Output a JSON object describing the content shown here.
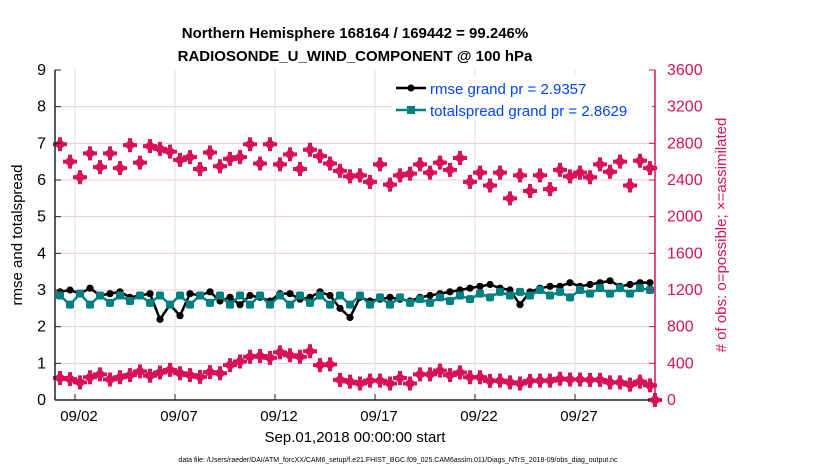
{
  "chart_data": {
    "type": "line",
    "title": [
      "Northern Hemisphere 168164 / 169442 = 99.246%",
      "RADIOSONDE_U_WIND_COMPONENT @ 100 hPa"
    ],
    "xlabel": "Sep.01,2018 00:00:00 start",
    "ylabel": "rmse and totalspread",
    "y2label": "# of obs: o=possible; ×=assimilated",
    "footnote": "data file: /Users/raeder/DAI/ATM_forcXX/CAM6_setup/f.e21.FHIST_BGC.f09_025.CAM6assim.011/Diags_NTrS_2018-09/obs_diag_output.nc",
    "xlim_days": [
      0,
      30
    ],
    "xticks": [
      {
        "day": 1,
        "label": "09/02"
      },
      {
        "day": 6,
        "label": "09/07"
      },
      {
        "day": 11,
        "label": "09/12"
      },
      {
        "day": 16,
        "label": "09/17"
      },
      {
        "day": 21,
        "label": "09/22"
      },
      {
        "day": 26,
        "label": "09/27"
      }
    ],
    "ylim": [
      0,
      9
    ],
    "yticks": [
      0,
      1,
      2,
      3,
      4,
      5,
      6,
      7,
      8,
      9
    ],
    "y2lim": [
      0,
      3600
    ],
    "y2ticks": [
      0,
      400,
      800,
      1200,
      1600,
      2000,
      2400,
      2800,
      3200,
      3600
    ],
    "grid": true,
    "legend_placement": "top-right",
    "colors": {
      "rmse": "#000000",
      "totalspread": "#008080",
      "obs": "#d81159",
      "legend_text": "#0044ff",
      "axis2": "#d81159"
    },
    "x_days_start": 0.25,
    "x_days_step": 0.5,
    "series": [
      {
        "name": "rmse grand pr = 2.9357",
        "axis": "left",
        "values": [
          2.95,
          3.0,
          2.9,
          3.05,
          2.85,
          2.9,
          2.95,
          2.8,
          2.85,
          2.9,
          2.2,
          2.6,
          2.3,
          2.9,
          2.85,
          2.95,
          2.7,
          2.8,
          2.6,
          2.85,
          2.8,
          2.7,
          2.9,
          2.9,
          2.75,
          2.8,
          2.95,
          2.85,
          2.5,
          2.25,
          2.8,
          2.7,
          2.75,
          2.8,
          2.75,
          2.7,
          2.8,
          2.85,
          2.9,
          2.95,
          3.0,
          3.05,
          3.1,
          3.15,
          3.05,
          3.0,
          2.6,
          2.95,
          3.05,
          3.1,
          3.1,
          3.2,
          3.1,
          3.15,
          3.2,
          3.25,
          3.1,
          3.15,
          3.2,
          3.2
        ]
      },
      {
        "name": "totalspread grand pr = 2.8629",
        "axis": "left",
        "values": [
          2.85,
          2.6,
          2.9,
          2.6,
          2.85,
          2.65,
          2.85,
          2.7,
          2.85,
          2.65,
          2.85,
          2.6,
          2.85,
          2.6,
          2.85,
          2.65,
          2.85,
          2.6,
          2.85,
          2.6,
          2.85,
          2.6,
          2.85,
          2.6,
          2.85,
          2.65,
          2.85,
          2.6,
          2.85,
          2.6,
          2.85,
          2.6,
          2.8,
          2.6,
          2.8,
          2.65,
          2.75,
          2.65,
          2.8,
          2.7,
          2.85,
          2.75,
          2.9,
          2.8,
          2.95,
          2.85,
          2.95,
          2.85,
          3.0,
          2.85,
          2.95,
          2.8,
          3.0,
          2.9,
          3.05,
          2.9,
          3.05,
          2.9,
          3.05,
          3.0
        ]
      },
      {
        "name": "possible",
        "axis": "right",
        "values": [
          2790,
          2600,
          2430,
          2690,
          2540,
          2690,
          2530,
          2780,
          2590,
          2770,
          2740,
          2710,
          2620,
          2650,
          2520,
          2700,
          2550,
          2630,
          2650,
          2790,
          2580,
          2790,
          2570,
          2680,
          2520,
          2730,
          2660,
          2580,
          2500,
          2440,
          2450,
          2380,
          2570,
          2350,
          2450,
          2470,
          2570,
          2480,
          2590,
          2510,
          2640,
          2380,
          2480,
          2340,
          2480,
          2200,
          2450,
          2280,
          2450,
          2300,
          2510,
          2440,
          2480,
          2430,
          2570,
          2490,
          2600,
          2340,
          2610,
          2530
        ]
      },
      {
        "name": "assimilated",
        "axis": "right",
        "values": [
          240,
          228,
          192,
          248,
          280,
          224,
          248,
          272,
          312,
          264,
          300,
          328,
          292,
          272,
          252,
          304,
          292,
          380,
          420,
          472,
          480,
          460,
          520,
          488,
          472,
          532,
          380,
          388,
          220,
          200,
          180,
          212,
          212,
          180,
          240,
          180,
          280,
          280,
          320,
          272,
          300,
          248,
          248,
          208,
          212,
          192,
          180,
          208,
          212,
          212,
          232,
          224,
          224,
          220,
          220,
          192,
          192,
          168,
          200,
          160
        ],
        "end_value": 0
      }
    ]
  }
}
